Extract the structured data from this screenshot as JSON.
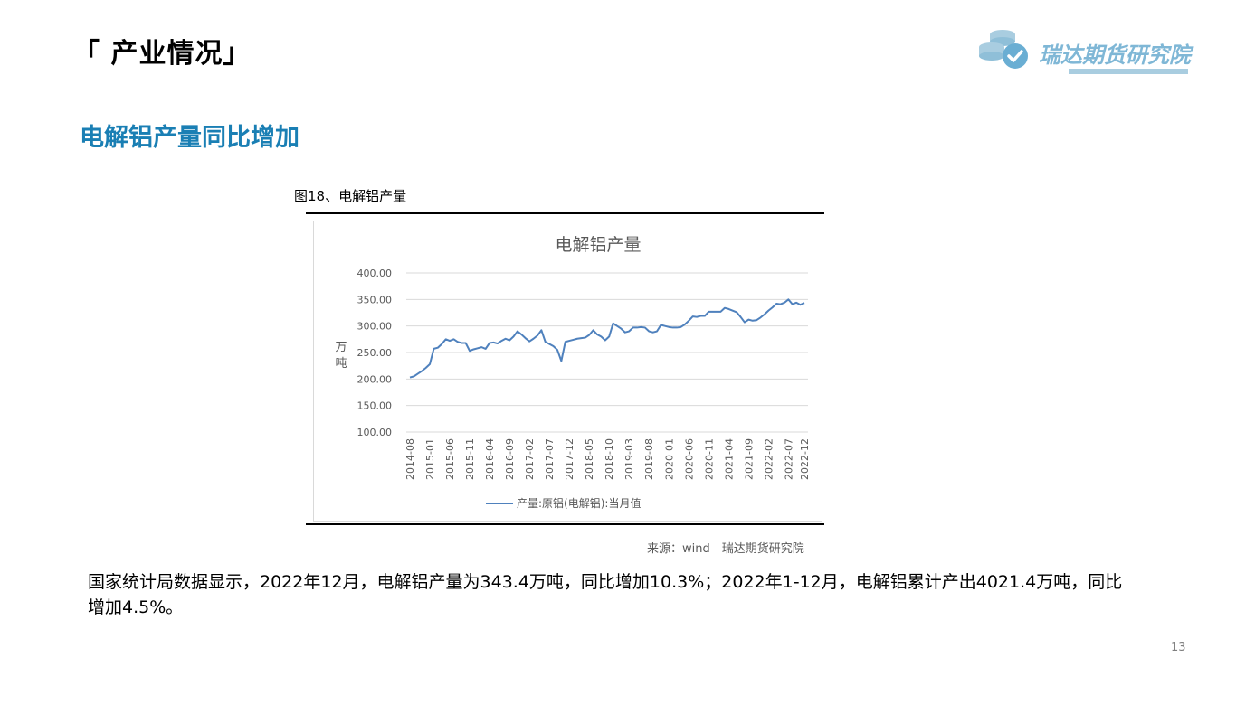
{
  "header": {
    "section_title": "「 产业情况」"
  },
  "logo": {
    "text": "瑞达期货研究院",
    "icon": "coins-check-icon",
    "color": "#7fb7d6"
  },
  "subtitle": "电解铝产量同比增加",
  "figure": {
    "caption": "图18、电解铝产量",
    "source": "来源：wind　瑞达期货研究院"
  },
  "body_text": "国家统计局数据显示，2022年12月，电解铝产量为343.4万吨，同比增加10.3%；2022年1-12月，电解铝累计产出4021.4万吨，同比增加4.5%。",
  "page_number": "13",
  "chart_data": {
    "type": "line",
    "title": "电解铝产量",
    "ylabel": "万吨",
    "xlabel": "",
    "ylim": [
      100,
      400
    ],
    "yticks": [
      "100.00",
      "150.00",
      "200.00",
      "250.00",
      "300.00",
      "350.00",
      "400.00"
    ],
    "xticks": [
      "2014-08",
      "2015-01",
      "2015-06",
      "2015-11",
      "2016-04",
      "2016-09",
      "2017-02",
      "2017-07",
      "2017-12",
      "2018-05",
      "2018-10",
      "2019-03",
      "2019-08",
      "2020-01",
      "2020-06",
      "2020-11",
      "2021-04",
      "2021-09",
      "2022-02",
      "2022-07",
      "2022-12"
    ],
    "grid": true,
    "legend": "bottom",
    "series": [
      {
        "name": "产量:原铝(电解铝):当月值",
        "color": "#4f81bd",
        "start": "2014-08",
        "values": [
          203,
          205,
          210,
          215,
          221,
          228,
          257,
          259,
          266,
          275,
          272,
          275,
          270,
          268,
          268,
          253,
          256,
          258,
          260,
          257,
          268,
          269,
          267,
          272,
          276,
          273,
          280,
          290,
          284,
          277,
          271,
          276,
          282,
          292,
          270,
          266,
          262,
          255,
          234,
          270,
          272,
          274,
          276,
          277,
          278,
          283,
          292,
          284,
          280,
          273,
          280,
          305,
          300,
          295,
          288,
          290,
          297,
          297,
          298,
          297,
          290,
          288,
          290,
          302,
          300,
          298,
          297,
          297,
          298,
          303,
          310,
          318,
          317,
          319,
          319,
          327,
          327,
          327,
          327,
          334,
          332,
          329,
          326,
          317,
          307,
          312,
          310,
          311,
          316,
          322,
          329,
          335,
          342,
          341,
          344,
          350,
          341,
          344,
          340,
          343.4
        ]
      }
    ]
  }
}
